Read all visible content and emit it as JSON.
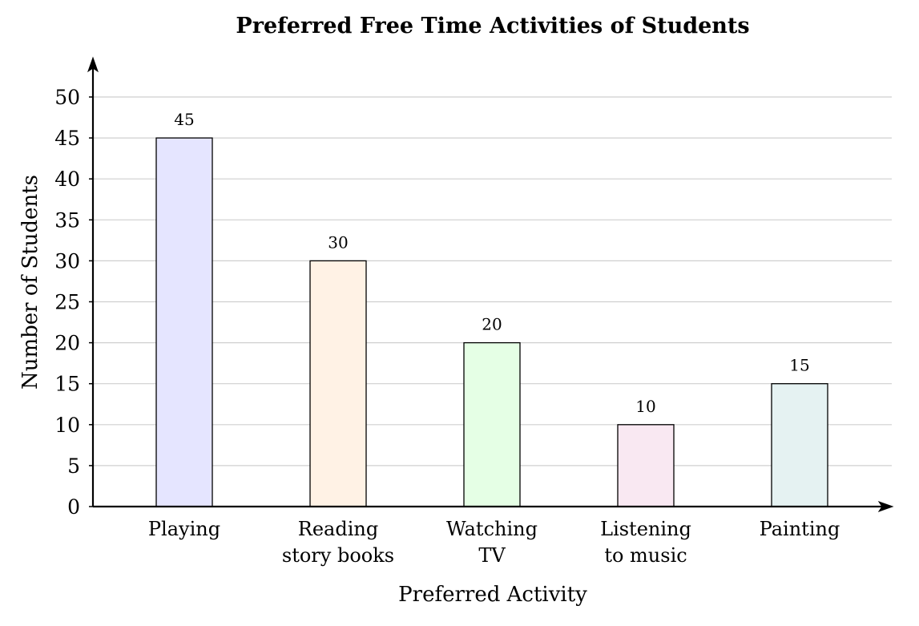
{
  "chart_data": {
    "type": "bar",
    "title": "Preferred Free Time Activities of Students",
    "xlabel": "Preferred Activity",
    "ylabel": "Number of Students",
    "categories": [
      [
        "Playing"
      ],
      [
        "Reading",
        "story books"
      ],
      [
        "Watching",
        "TV"
      ],
      [
        "Listening",
        "to music"
      ],
      [
        "Painting"
      ]
    ],
    "values": [
      45,
      30,
      20,
      10,
      15
    ],
    "data_labels": [
      "45",
      "30",
      "20",
      "10",
      "15"
    ],
    "bar_colors": [
      "#e5e5ff",
      "#fff2e5",
      "#e5ffe5",
      "#f9e8f2",
      "#e5f2f2"
    ],
    "ylim": [
      0,
      50
    ],
    "yticks": [
      0,
      5,
      10,
      15,
      20,
      25,
      30,
      35,
      40,
      45,
      50
    ],
    "grid": true,
    "legend": "none"
  }
}
